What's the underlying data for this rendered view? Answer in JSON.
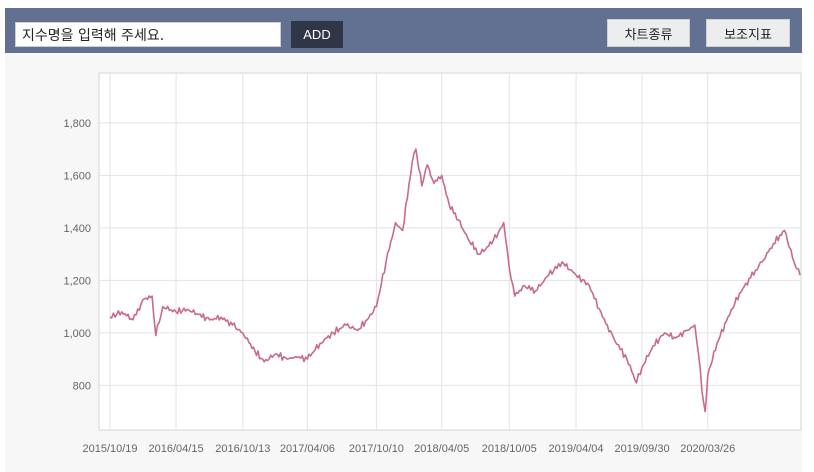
{
  "toolbar": {
    "search_value": "지수명을 입력해 주세요.",
    "add_label": "ADD",
    "chart_type_label": "차트종류",
    "indicator_label": "보조지표"
  },
  "colors": {
    "toolbar_bg": "#627092",
    "add_button_bg": "#2f3647",
    "series_line": "#c96a8c",
    "grid": "#e3e3e3"
  },
  "chart_data": {
    "type": "line",
    "title": "",
    "xlabel": "",
    "ylabel": "",
    "grid": true,
    "legend": "none",
    "x_ticks": [
      "2015/10/19",
      "2016/04/15",
      "2016/10/13",
      "2017/04/06",
      "2017/10/10",
      "2018/04/05",
      "2018/10/05",
      "2019/04/04",
      "2019/09/30",
      "2020/03/26"
    ],
    "y_ticks": [
      800,
      1000,
      1200,
      1400,
      1600,
      1800
    ],
    "y_tick_labels": [
      "800",
      "1,000",
      "1,200",
      "1,400",
      "1,600",
      "1,800"
    ],
    "ylim": [
      630,
      1990
    ],
    "series": [
      {
        "name": "",
        "x": [
          "2015/10/19",
          "2015/11/20",
          "2015/12/20",
          "2016/01/20",
          "2016/02/10",
          "2016/02/20",
          "2016/03/10",
          "2016/04/15",
          "2016/05/15",
          "2016/06/15",
          "2016/07/15",
          "2016/08/15",
          "2016/09/15",
          "2016/10/13",
          "2016/11/15",
          "2016/12/10",
          "2017/01/10",
          "2017/02/10",
          "2017/03/05",
          "2017/04/06",
          "2017/05/10",
          "2017/06/15",
          "2017/07/20",
          "2017/08/20",
          "2017/09/15",
          "2017/10/10",
          "2017/11/05",
          "2017/12/01",
          "2017/12/20",
          "2018/01/15",
          "2018/01/25",
          "2018/02/10",
          "2018/02/25",
          "2018/03/15",
          "2018/04/05",
          "2018/04/25",
          "2018/05/20",
          "2018/06/15",
          "2018/07/15",
          "2018/08/10",
          "2018/09/05",
          "2018/09/20",
          "2018/10/05",
          "2018/10/20",
          "2018/11/15",
          "2018/12/15",
          "2019/01/20",
          "2019/02/25",
          "2019/04/04",
          "2019/05/10",
          "2019/06/15",
          "2019/07/15",
          "2019/08/20",
          "2019/09/15",
          "2019/09/30",
          "2019/10/30",
          "2019/11/30",
          "2019/12/30",
          "2020/01/30",
          "2020/02/20",
          "2020/03/01",
          "2020/03/10",
          "2020/03/19",
          "2020/03/26",
          "2020/04/20",
          "2020/05/20",
          "2020/06/20",
          "2020/07/20",
          "2020/08/20",
          "2020/09/20",
          "2020/10/20",
          "2020/11/15",
          "2020/12/01"
        ],
        "y": [
          1060,
          1080,
          1050,
          1130,
          1140,
          990,
          1100,
          1080,
          1090,
          1070,
          1050,
          1060,
          1030,
          1000,
          930,
          890,
          920,
          900,
          910,
          900,
          960,
          1000,
          1030,
          1010,
          1050,
          1100,
          1270,
          1420,
          1390,
          1650,
          1700,
          1560,
          1640,
          1570,
          1600,
          1490,
          1430,
          1360,
          1300,
          1330,
          1380,
          1420,
          1250,
          1140,
          1180,
          1160,
          1220,
          1270,
          1220,
          1180,
          1060,
          980,
          900,
          810,
          870,
          950,
          1000,
          980,
          1010,
          1030,
          920,
          780,
          700,
          840,
          960,
          1060,
          1150,
          1210,
          1270,
          1340,
          1390,
          1270,
          1220
        ]
      }
    ]
  }
}
